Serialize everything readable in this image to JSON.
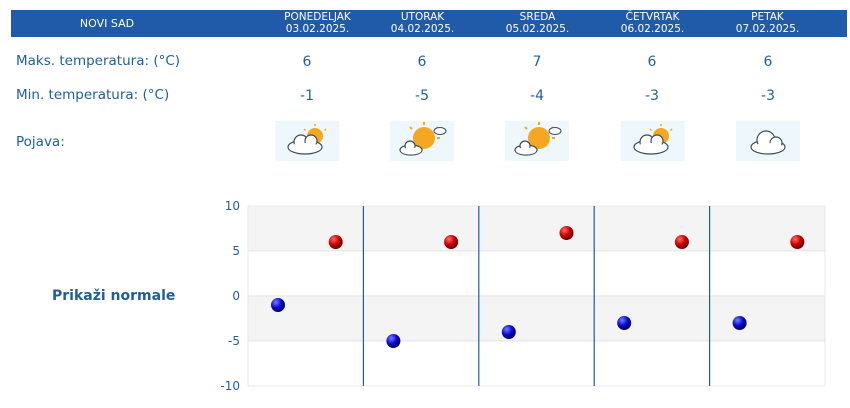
{
  "header": {
    "city": "NOVI SAD",
    "days": [
      {
        "name": "PONEDELJAK",
        "date": "03.02.2025."
      },
      {
        "name": "UTORAK",
        "date": "04.02.2025."
      },
      {
        "name": "SREDA",
        "date": "05.02.2025."
      },
      {
        "name": "ČETVRTAK",
        "date": "06.02.2025."
      },
      {
        "name": "PETAK",
        "date": "07.02.2025."
      }
    ]
  },
  "rows": {
    "max_label": "Maks. temperatura: (°C)",
    "min_label": "Min. temperatura: (°C)",
    "phenomenon_label": "Pojava:"
  },
  "max_values": [
    "6",
    "6",
    "7",
    "6",
    "6"
  ],
  "min_values": [
    "-1",
    "-5",
    "-4",
    "-3",
    "-3"
  ],
  "icons": [
    "partly-cloudy-icon",
    "sunny-cloud-icon",
    "sunny-cloud-icon",
    "partly-cloudy-icon",
    "cloud-icon"
  ],
  "normals_link": "Prikaži normale",
  "colors": {
    "header_bg": "#1f5ba8",
    "text": "#1f5f9e",
    "max_marker": "#d00000",
    "min_marker": "#0a0ad0"
  },
  "chart_data": {
    "type": "scatter",
    "ylim": [
      -10,
      10
    ],
    "yticks": [
      "10",
      "5",
      "0",
      "-5",
      "-10"
    ],
    "series": [
      {
        "values": [
          6,
          6,
          7,
          6,
          6
        ]
      },
      {
        "values": [
          -1,
          -5,
          -4,
          -3,
          -3
        ]
      }
    ]
  }
}
